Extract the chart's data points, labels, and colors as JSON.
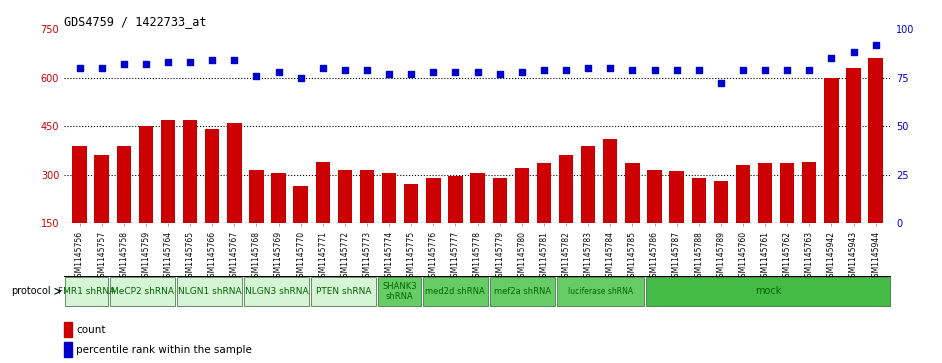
{
  "title": "GDS4759 / 1422733_at",
  "samples": [
    "GSM1145756",
    "GSM1145757",
    "GSM1145758",
    "GSM1145759",
    "GSM1145764",
    "GSM1145765",
    "GSM1145766",
    "GSM1145767",
    "GSM1145768",
    "GSM1145769",
    "GSM1145770",
    "GSM1145771",
    "GSM1145772",
    "GSM1145773",
    "GSM1145774",
    "GSM1145775",
    "GSM1145776",
    "GSM1145777",
    "GSM1145778",
    "GSM1145779",
    "GSM1145780",
    "GSM1145781",
    "GSM1145782",
    "GSM1145783",
    "GSM1145784",
    "GSM1145785",
    "GSM1145786",
    "GSM1145787",
    "GSM1145788",
    "GSM1145789",
    "GSM1145760",
    "GSM1145761",
    "GSM1145762",
    "GSM1145763",
    "GSM1145942",
    "GSM1145943",
    "GSM1145944"
  ],
  "counts": [
    390,
    360,
    390,
    450,
    470,
    470,
    440,
    460,
    315,
    305,
    265,
    340,
    315,
    315,
    305,
    270,
    290,
    295,
    305,
    290,
    320,
    335,
    360,
    390,
    410,
    335,
    315,
    310,
    290,
    280,
    330,
    335,
    335,
    340,
    600,
    630,
    660
  ],
  "percentiles": [
    80,
    80,
    82,
    82,
    83,
    83,
    84,
    84,
    76,
    78,
    75,
    80,
    79,
    79,
    77,
    77,
    78,
    78,
    78,
    77,
    78,
    79,
    79,
    80,
    80,
    79,
    79,
    79,
    79,
    72,
    79,
    79,
    79,
    79,
    85,
    88,
    92
  ],
  "protocols": [
    {
      "label": "FMR1 shRNA",
      "start": 0,
      "end": 2,
      "color": "#d6f5d6",
      "fontsize": 6.5,
      "text_color": "#006600"
    },
    {
      "label": "MeCP2 shRNA",
      "start": 2,
      "end": 5,
      "color": "#d6f5d6",
      "fontsize": 6.5,
      "text_color": "#006600"
    },
    {
      "label": "NLGN1 shRNA",
      "start": 5,
      "end": 8,
      "color": "#d6f5d6",
      "fontsize": 6.5,
      "text_color": "#006600"
    },
    {
      "label": "NLGN3 shRNA",
      "start": 8,
      "end": 11,
      "color": "#d6f5d6",
      "fontsize": 6.5,
      "text_color": "#006600"
    },
    {
      "label": "PTEN shRNA",
      "start": 11,
      "end": 14,
      "color": "#d6f5d6",
      "fontsize": 6.5,
      "text_color": "#006600"
    },
    {
      "label": "SHANK3\nshRNA",
      "start": 14,
      "end": 16,
      "color": "#66cc66",
      "fontsize": 6.0,
      "text_color": "#006600"
    },
    {
      "label": "med2d shRNA",
      "start": 16,
      "end": 19,
      "color": "#66cc66",
      "fontsize": 6.0,
      "text_color": "#006600"
    },
    {
      "label": "mef2a shRNA",
      "start": 19,
      "end": 22,
      "color": "#66cc66",
      "fontsize": 6.0,
      "text_color": "#006600"
    },
    {
      "label": "luciferase shRNA",
      "start": 22,
      "end": 26,
      "color": "#66cc66",
      "fontsize": 5.5,
      "text_color": "#006600"
    },
    {
      "label": "mock",
      "start": 26,
      "end": 37,
      "color": "#44bb44",
      "fontsize": 7.0,
      "text_color": "#006600"
    }
  ],
  "ylim_left": [
    150,
    750
  ],
  "yticks_left": [
    150,
    300,
    450,
    600,
    750
  ],
  "ylim_right": [
    0,
    100
  ],
  "yticks_right": [
    0,
    25,
    50,
    75,
    100
  ],
  "bar_color": "#cc0000",
  "dot_color": "#0000cc",
  "hline_values": [
    300,
    450,
    600
  ],
  "bar_width": 0.65
}
